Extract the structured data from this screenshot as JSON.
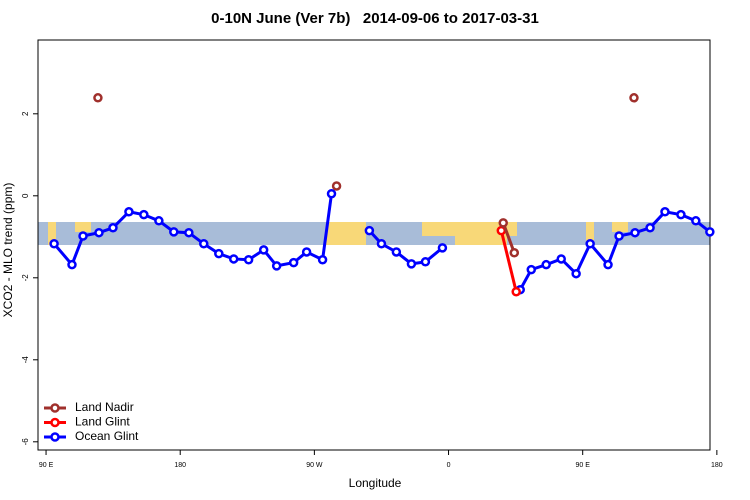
{
  "chart_data": {
    "type": "line",
    "title": "0-10N June (Ver 7b)   2014-09-06 to 2017-03-31",
    "x_label": "Longitude",
    "y_label": "XCO2 - MLO trend (ppm)",
    "xlim": [
      84.6,
      535.4
    ],
    "xticks": [
      {
        "value": 90,
        "label": "90 E"
      },
      180,
      {
        "value": 270,
        "label": "90 W"
      },
      {
        "value": 360,
        "label": "0"
      },
      {
        "value": 450,
        "label": "90 E"
      },
      {
        "value": 540,
        "label": "180"
      }
    ],
    "ylim": [
      -6.2,
      3.8
    ],
    "yticks": [
      -6,
      -4,
      -2,
      0,
      2
    ],
    "legend": "bottom-left",
    "series": [
      {
        "name": "Land Nadir",
        "color": "#a0302c",
        "x": [
          124.8,
          null,
          284.9,
          null,
          396.7,
          404.1,
          null,
          484.4
        ],
        "values": [
          2.39,
          null,
          0.24,
          null,
          -0.66,
          -1.39,
          null,
          2.39
        ]
      },
      {
        "name": "Land Glint",
        "color": "#ff0000",
        "x": [
          395.4,
          405.4
        ],
        "values": [
          -0.85,
          -2.34
        ]
      },
      {
        "name": "Ocean Glint",
        "color": "#0000ff",
        "x": [
          95.4,
          107.4,
          114.8,
          125.5,
          134.9,
          145.6,
          155.6,
          165.7,
          175.7,
          185.8,
          195.8,
          205.9,
          215.9,
          225.9,
          236.0,
          244.7,
          256.1,
          264.8,
          275.5,
          281.5,
          null,
          306.9,
          315.0,
          325.0,
          335.1,
          344.5,
          355.9,
          null,
          408.1,
          415.5,
          425.5,
          435.6,
          445.6,
          455.0,
          467.0,
          474.4,
          485.1,
          495.2,
          505.2,
          515.9,
          525.9,
          535.3
        ],
        "values": [
          -1.17,
          -1.68,
          -0.98,
          -0.9,
          -0.78,
          -0.39,
          -0.46,
          -0.61,
          -0.88,
          -0.9,
          -1.17,
          -1.41,
          -1.54,
          -1.56,
          -1.32,
          -1.71,
          -1.63,
          -1.37,
          -1.56,
          0.05,
          null,
          -0.85,
          -1.17,
          -1.37,
          -1.66,
          -1.61,
          -1.27,
          null,
          -2.29,
          -1.8,
          -1.68,
          -1.54,
          -1.9,
          -1.17,
          -1.68,
          -0.98,
          -0.9,
          -0.78,
          -0.39,
          -0.46,
          -0.61,
          -0.88
        ]
      }
    ]
  }
}
